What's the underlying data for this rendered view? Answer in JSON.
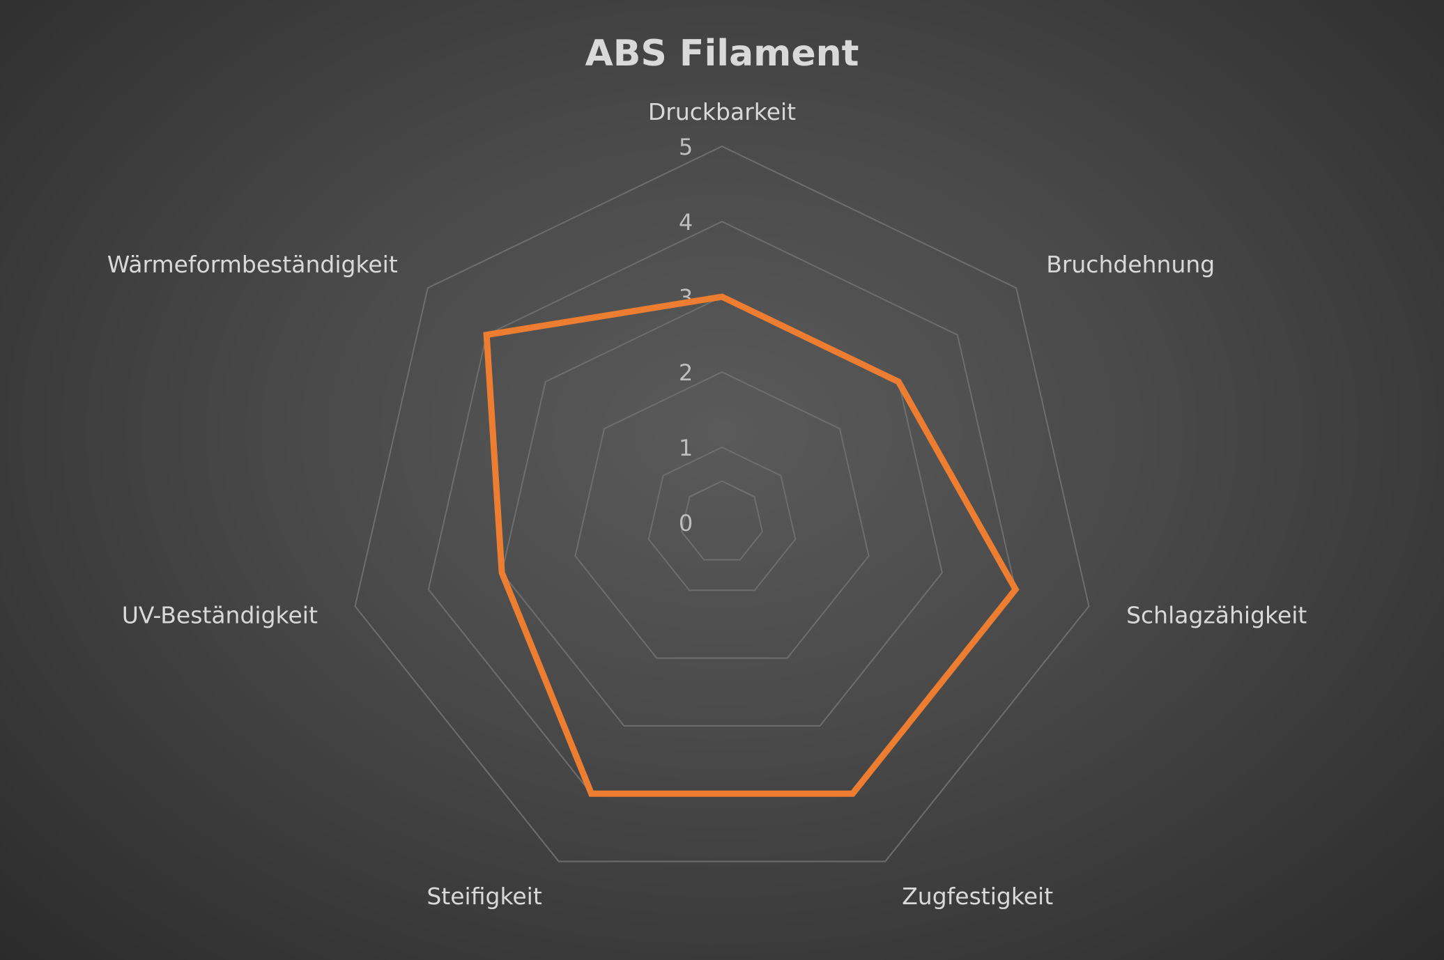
{
  "chart_data": {
    "type": "radar",
    "title": "ABS Filament",
    "categories": [
      "Druckbarkeit",
      "Bruchdehnung",
      "Schlagzähigkeit",
      "Zugfestigkeit",
      "Steifigkeit",
      "UV-Beständigkeit",
      "Wärmeformbeständigkeit"
    ],
    "series": [
      {
        "values": [
          3,
          3,
          4,
          4,
          4,
          3,
          4
        ],
        "color": "#ed7d31"
      }
    ],
    "rlim": [
      0,
      5
    ],
    "ticks": [
      0,
      1,
      2,
      3,
      4,
      5
    ],
    "grid": true,
    "legend": "none",
    "background": "#404040"
  }
}
